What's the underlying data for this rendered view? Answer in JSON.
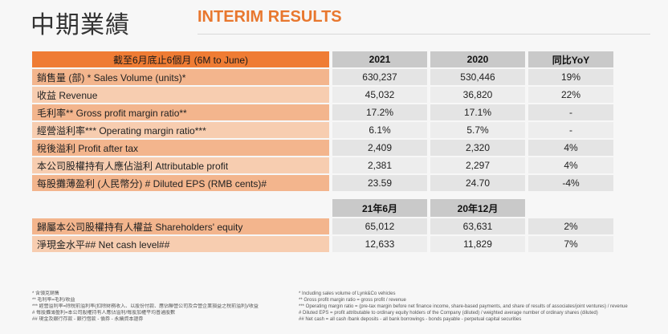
{
  "header": {
    "title_zh": "中期業績",
    "title_en": "INTERIM RESULTS"
  },
  "table": {
    "period_label": "截至6月底止6個月 (6M to June)",
    "columns": [
      "2021",
      "2020",
      "同比YoY"
    ],
    "rows": [
      {
        "label": "銷售量 (部) *   Sales Volume (units)*",
        "v2021": "630,237",
        "v2020": "530,446",
        "yoy": "19%"
      },
      {
        "label": "收益 Revenue",
        "v2021": "45,032",
        "v2020": "36,820",
        "yoy": "22%"
      },
      {
        "label": "毛利率** Gross profit margin ratio**",
        "v2021": "17.2%",
        "v2020": "17.1%",
        "yoy": "-"
      },
      {
        "label": "經營溢利率*** Operating margin ratio***",
        "v2021": "6.1%",
        "v2020": "5.7%",
        "yoy": "-"
      },
      {
        "label": "稅後溢利 Profit after tax",
        "v2021": "2,409",
        "v2020": "2,320",
        "yoy": "4%"
      },
      {
        "label": "本公司股權持有人應佔溢利 Attributable profit",
        "v2021": "2,381",
        "v2020": "2,297",
        "yoy": "4%"
      },
      {
        "label": "每股攤薄盈利 (人民幣分) # Diluted EPS (RMB cents)#",
        "v2021": "23.59",
        "v2020": "24.70",
        "yoy": "-4%"
      }
    ],
    "balance_columns": [
      "21年6月",
      "20年12月"
    ],
    "balance_rows": [
      {
        "label": "歸屬本公司股權持有人權益 Shareholders' equity",
        "a": "65,012",
        "b": "63,631",
        "yoy": "2%"
      },
      {
        "label": "淨現金水平## Net cash level##",
        "a": "12,633",
        "b": "11,829",
        "yoy": "7%"
      }
    ]
  },
  "footnotes": {
    "left": [
      "*      含領克銷售",
      "**     毛利率=毛利/收益",
      "***    經營溢利率=除稅前溢利率(扣除財務收入、以股份付款、應佔聯營公司及合營企業損益之稅前溢利)/收益",
      "#      每股攤薄盈利=本公司股權持有人應佔溢利/每股加權平均普通股數",
      "##     現金及銀行存款 - 銀行借款 - 債券 - 永續資本證券"
    ],
    "right": [
      "*      Including sales volume of Lynk&Co vehicles",
      "**     Gross profit margin ratio = gross profit / revenue",
      "***    Operating margin ratio = (pre-tax margin before net finance income, share-based payments, and share of results of associates/joint ventures) / revenue",
      "#      Diluted EPS = profit attributable to ordinary equity holders of the Company (diluted) / weighted average number of ordinary shares (diluted)",
      "##     Net cash = all cash /bank deposits - all bank borrowings - bonds payable - perpetual capital securities"
    ]
  }
}
